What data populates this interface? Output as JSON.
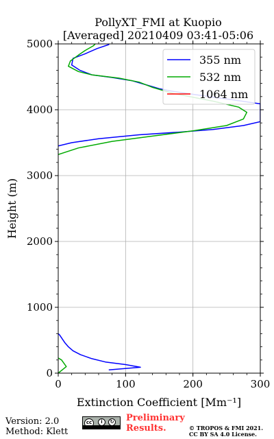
{
  "chart_data": {
    "type": "line",
    "title": "PollyXT_FMI at Kuopio",
    "subtitle": "[Averaged] 20210409 03:41-05:06",
    "xlabel": "Extinction Coefficient [Mm⁻¹]",
    "ylabel": "Height (m)",
    "xlim": [
      0,
      300
    ],
    "ylim": [
      0,
      5000
    ],
    "xticks": [
      "0",
      "100",
      "200",
      "300"
    ],
    "yticks": [
      "0",
      "1000",
      "2000",
      "3000",
      "4000",
      "5000"
    ],
    "grid": true,
    "legend_position": "top-right",
    "series": [
      {
        "name": "355 nm",
        "color": "#0000ff",
        "segments": [
          [
            [
              75,
              50
            ],
            [
              122,
              90
            ],
            [
              100,
              130
            ],
            [
              70,
              170
            ],
            [
              50,
              220
            ],
            [
              33,
              280
            ],
            [
              22,
              340
            ],
            [
              15,
              400
            ],
            [
              10,
              460
            ],
            [
              6,
              520
            ],
            [
              2,
              580
            ],
            [
              0,
              600
            ]
          ],
          [
            [
              0,
              3450
            ],
            [
              20,
              3500
            ],
            [
              60,
              3560
            ],
            [
              120,
              3620
            ],
            [
              180,
              3660
            ],
            [
              230,
              3700
            ],
            [
              275,
              3760
            ],
            [
              300,
              3820
            ],
            [
              300,
              3870
            ],
            [
              300,
              4090
            ],
            [
              260,
              4150
            ],
            [
              210,
              4220
            ],
            [
              170,
              4280
            ],
            [
              150,
              4320
            ],
            [
              130,
              4380
            ],
            [
              110,
              4440
            ],
            [
              80,
              4490
            ],
            [
              50,
              4530
            ],
            [
              32,
              4600
            ],
            [
              20,
              4680
            ],
            [
              22,
              4780
            ],
            [
              40,
              4850
            ],
            [
              58,
              4930
            ],
            [
              75,
              4990
            ],
            [
              75,
              5000
            ]
          ]
        ]
      },
      {
        "name": "532 nm",
        "color": "#00aa00",
        "segments": [
          [
            [
              0,
              0
            ],
            [
              12,
              100
            ],
            [
              5,
              200
            ],
            [
              0,
              230
            ]
          ],
          [
            [
              0,
              3320
            ],
            [
              30,
              3420
            ],
            [
              80,
              3520
            ],
            [
              140,
              3600
            ],
            [
              200,
              3680
            ],
            [
              250,
              3760
            ],
            [
              275,
              3860
            ],
            [
              280,
              3960
            ],
            [
              268,
              4040
            ],
            [
              230,
              4130
            ],
            [
              170,
              4250
            ],
            [
              140,
              4340
            ],
            [
              120,
              4420
            ],
            [
              90,
              4480
            ],
            [
              50,
              4530
            ],
            [
              30,
              4580
            ],
            [
              15,
              4660
            ],
            [
              18,
              4740
            ],
            [
              30,
              4830
            ],
            [
              40,
              4900
            ],
            [
              52,
              4970
            ],
            [
              55,
              5000
            ]
          ]
        ]
      },
      {
        "name": "1064 nm",
        "color": "#ff0000",
        "segments": []
      }
    ]
  },
  "footer": {
    "version": "Version: 2.0",
    "method": "Method: Klett",
    "license_badge": "cc-by-sa-badge",
    "preliminary": "Preliminary Results.",
    "copyright_line1": "© TROPOS & FMI 2021.",
    "copyright_line2": "CC BY SA 4.0 License."
  }
}
